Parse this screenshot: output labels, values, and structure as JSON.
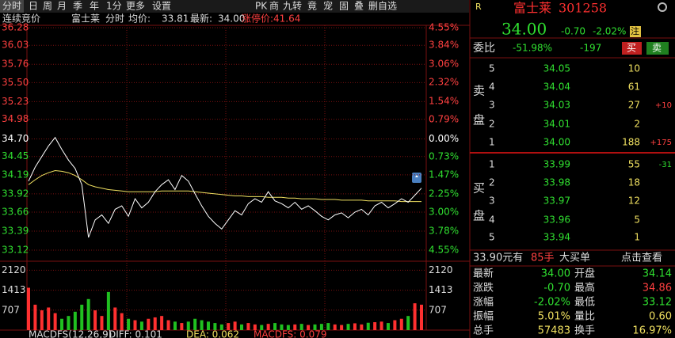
{
  "toolbar": {
    "left": [
      "分时",
      "日",
      "周",
      "月",
      "季",
      "年",
      "1分",
      "更多",
      "设置"
    ],
    "right": [
      "PK",
      "商",
      "九转",
      "竟",
      "宠",
      "固",
      "叠",
      "删自选"
    ]
  },
  "info_bar": {
    "mode": "连续竞价",
    "name": "富士莱",
    "view": "分时",
    "avg_label": "均价:",
    "avg": "33.81",
    "last_label": "最新:",
    "last": "34.00",
    "limit_label": "涨停价:",
    "limit": "41.64"
  },
  "indicator_bar": {
    "name": "MACDFS(12,26,9)",
    "diff": "DIFF: 0.101",
    "dea": "DEA: 0.062",
    "macd": "MACDFS: 0.079"
  },
  "chart_data": [
    {
      "type": "line",
      "ylim": [
        33.12,
        36.28
      ],
      "yticks": [
        36.28,
        36.03,
        35.76,
        {
          "value": 35.5,
          "label": "35.50"
        },
        35.23,
        34.98,
        {
          "value": 34.7,
          "label": "34.70"
        },
        34.45,
        34.19,
        33.92,
        33.66,
        33.39,
        33.12
      ],
      "y2lim": [
        -4.55,
        4.55
      ],
      "y2ticks": [
        {
          "value": 4.55,
          "label": "4.55%"
        },
        {
          "value": 3.84,
          "label": "3.84%"
        },
        {
          "value": 3.06,
          "label": "3.06%"
        },
        {
          "value": 2.32,
          "label": "2.32%"
        },
        {
          "value": 1.54,
          "label": "1.54%"
        },
        {
          "value": 0.79,
          "label": "0.79%"
        },
        {
          "value": 0,
          "label": "0.00%"
        },
        {
          "value": -0.73,
          "label": "0.73%"
        },
        {
          "value": -1.47,
          "label": "1.47%"
        },
        {
          "value": -2.25,
          "label": "2.25%"
        },
        {
          "value": -3.0,
          "label": "3.00%"
        },
        {
          "value": -3.78,
          "label": "3.78%"
        },
        {
          "value": -4.55,
          "label": "4.55%"
        }
      ],
      "grid": true,
      "series": [
        {
          "color": "#ffffff",
          "values": [
            34.1,
            34.3,
            34.45,
            34.6,
            34.72,
            34.55,
            34.4,
            34.28,
            34.05,
            33.3,
            33.55,
            33.62,
            33.5,
            33.7,
            33.75,
            33.6,
            33.85,
            33.72,
            33.8,
            33.95,
            34.05,
            34.12,
            33.98,
            34.18,
            34.1,
            33.92,
            33.75,
            33.6,
            33.5,
            33.42,
            33.55,
            33.68,
            33.62,
            33.78,
            33.85,
            33.8,
            33.95,
            33.82,
            33.78,
            33.72,
            33.8,
            33.7,
            33.75,
            33.68,
            33.6,
            33.55,
            33.62,
            33.65,
            33.58,
            33.66,
            33.7,
            33.62,
            33.75,
            33.8,
            33.72,
            33.78,
            33.85,
            33.8,
            33.9,
            34.0
          ]
        },
        {
          "color": "#f0e060",
          "values": [
            34.05,
            34.12,
            34.18,
            34.22,
            34.25,
            34.24,
            34.22,
            34.18,
            34.12,
            34.05,
            34.02,
            34.0,
            33.98,
            33.97,
            33.96,
            33.95,
            33.95,
            33.95,
            33.95,
            33.95,
            33.96,
            33.96,
            33.96,
            33.96,
            33.96,
            33.95,
            33.94,
            33.93,
            33.92,
            33.91,
            33.9,
            33.89,
            33.89,
            33.88,
            33.88,
            33.88,
            33.87,
            33.87,
            33.87,
            33.86,
            33.86,
            33.85,
            33.85,
            33.85,
            33.84,
            33.84,
            33.84,
            33.83,
            33.83,
            33.83,
            33.83,
            33.82,
            33.82,
            33.82,
            33.82,
            33.82,
            33.81,
            33.81,
            33.81,
            33.81
          ]
        }
      ]
    },
    {
      "type": "bar",
      "ylim": [
        0,
        2300
      ],
      "yticks": [
        707,
        1413,
        2120
      ],
      "values": [
        1500,
        900,
        700,
        800,
        600,
        400,
        500,
        650,
        900,
        1100,
        700,
        500,
        1350,
        800,
        600,
        400,
        350,
        300,
        400,
        450,
        500,
        350,
        300,
        250,
        300,
        400,
        350,
        300,
        250,
        200,
        250,
        300,
        200,
        250,
        200,
        180,
        220,
        250,
        200,
        180,
        200,
        220,
        180,
        200,
        220,
        250,
        200,
        180,
        220,
        240,
        200,
        260,
        280,
        300,
        250,
        350,
        400,
        500,
        950,
        900
      ]
    }
  ],
  "quote": {
    "badge": "R",
    "name": "富士莱",
    "code": "301258",
    "price": "34.00",
    "change": "-0.70",
    "pct": "-2.02%",
    "tag": "注"
  },
  "ratio": {
    "label": "委比",
    "pct": "-51.98%",
    "diff": "-197",
    "buy": "买",
    "sell": "卖"
  },
  "sell_side": {
    "label": [
      "卖",
      "盘"
    ],
    "rows": [
      {
        "level": "5",
        "price": "34.05",
        "volume": "10"
      },
      {
        "level": "4",
        "price": "34.04",
        "volume": "61"
      },
      {
        "level": "3",
        "price": "34.03",
        "volume": "27",
        "change": "+10"
      },
      {
        "level": "2",
        "price": "34.01",
        "volume": "2"
      },
      {
        "level": "1",
        "price": "34.00",
        "volume": "188",
        "change": "+175"
      }
    ]
  },
  "buy_side": {
    "label": [
      "买",
      "盘"
    ],
    "rows": [
      {
        "level": "1",
        "price": "33.99",
        "volume": "55",
        "change": "-31"
      },
      {
        "level": "2",
        "price": "33.98",
        "volume": "18"
      },
      {
        "level": "3",
        "price": "33.97",
        "volume": "12"
      },
      {
        "level": "4",
        "price": "33.96",
        "volume": "5"
      },
      {
        "level": "5",
        "price": "33.94",
        "volume": "1"
      }
    ]
  },
  "big_order": {
    "price": "33.90元有",
    "volume": "85手",
    "kind": "大买单",
    "link": "点击查看"
  },
  "stats": [
    [
      "最新",
      "34.00",
      "开盘",
      "34.14"
    ],
    [
      "涨跌",
      "-0.70",
      "最高",
      "34.86"
    ],
    [
      "涨幅",
      "-2.02%",
      "最低",
      "33.12"
    ],
    [
      "振幅",
      "5.01%",
      "量比",
      "0.60"
    ],
    [
      "总手",
      "57483",
      "换手",
      "16.97%"
    ]
  ]
}
